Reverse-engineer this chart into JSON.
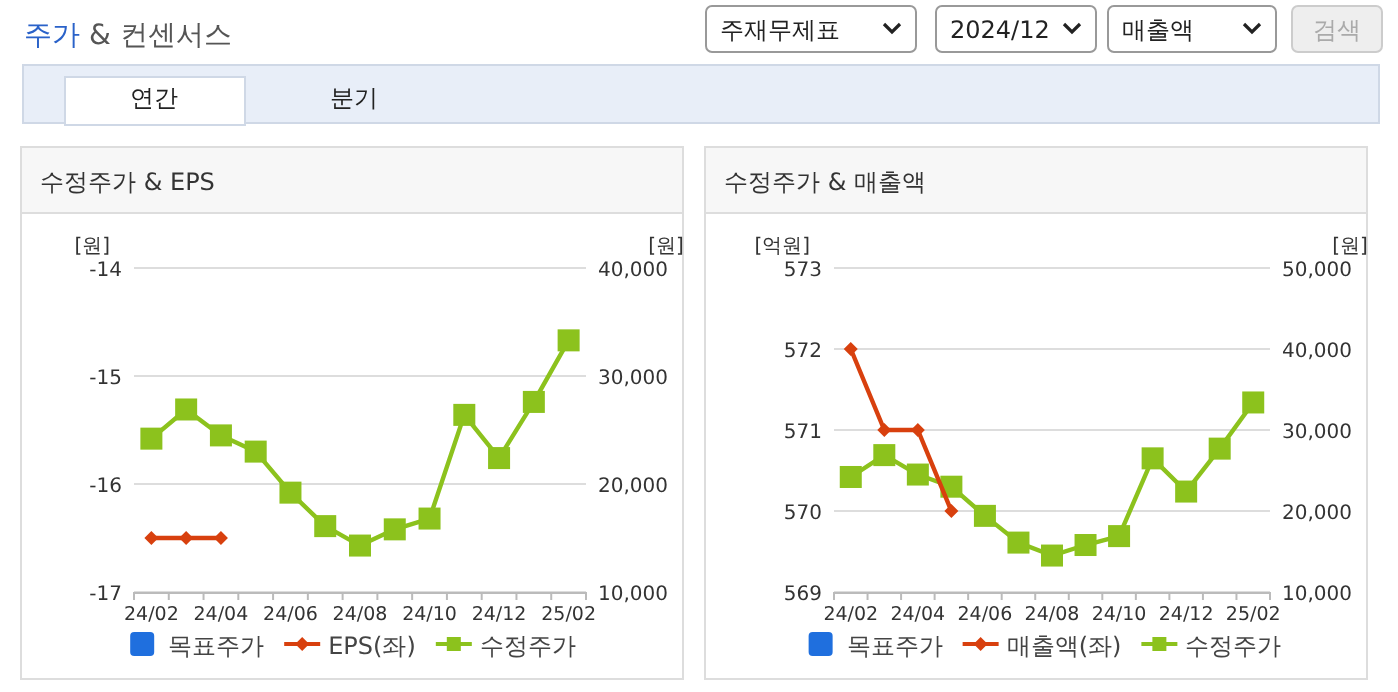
{
  "chart_data": [
    {
      "type": "other",
      "title": "주가 & 컨센서스",
      "annotations": [
        "주재무제표",
        "2024/12",
        "매출액",
        "검색",
        "연간",
        "분기"
      ]
    },
    {
      "type": "line",
      "title": "수정주가 & EPS",
      "ylabel": "[원]",
      "y2label": "[원]",
      "categories": [
        "24/02",
        null,
        "24/04",
        null,
        "24/06",
        null,
        "24/08",
        null,
        "24/10",
        null,
        "24/12",
        null,
        "25/02"
      ],
      "ylim": [
        -17,
        -14
      ],
      "yticks": [
        -17,
        -16,
        -15,
        -14
      ],
      "y2lim": [
        10000,
        40000
      ],
      "y2ticks": [
        {
          "value": 10000,
          "label": "10,000"
        },
        {
          "value": 20000,
          "label": "20,000"
        },
        {
          "value": 30000,
          "label": "30,000"
        },
        {
          "value": 40000,
          "label": "40,000"
        }
      ],
      "grid": "y",
      "legend": "bottom",
      "series": [
        {
          "name": "목표주가",
          "type": "bar",
          "color": "#1f6fde",
          "values": [
            null,
            null,
            null,
            null,
            null,
            null,
            null,
            null,
            null,
            null,
            null,
            null,
            null
          ]
        },
        {
          "name": "EPS(좌)",
          "color": "#d8400e",
          "marker": "diamond",
          "values": [
            -16.5,
            -16.5,
            -16.5,
            null,
            null,
            null,
            null,
            null,
            null,
            null,
            null,
            null,
            null
          ]
        },
        {
          "name": "수정주가",
          "color": "#8cc21d",
          "marker": "square",
          "axis": "y2",
          "values": [
            24200,
            26900,
            24500,
            23000,
            19200,
            16100,
            14300,
            15800,
            16800,
            26400,
            22400,
            27600,
            33300
          ]
        }
      ]
    },
    {
      "type": "line",
      "title": "수정주가 & 매출액",
      "ylabel": "[억원]",
      "y2label": "[원]",
      "categories": [
        "24/02",
        null,
        "24/04",
        null,
        "24/06",
        null,
        "24/08",
        null,
        "24/10",
        null,
        "24/12",
        null,
        "25/02"
      ],
      "ylim": [
        569,
        573
      ],
      "yticks": [
        569,
        570,
        571,
        572,
        573
      ],
      "y2lim": [
        10000,
        50000
      ],
      "y2ticks": [
        {
          "value": 10000,
          "label": "10,000"
        },
        {
          "value": 20000,
          "label": "20,000"
        },
        {
          "value": 30000,
          "label": "30,000"
        },
        {
          "value": 40000,
          "label": "40,000"
        },
        {
          "value": 50000,
          "label": "50,000"
        }
      ],
      "grid": "y",
      "legend": "bottom",
      "series": [
        {
          "name": "목표주가",
          "type": "bar",
          "color": "#1f6fde",
          "values": [
            null,
            null,
            null,
            null,
            null,
            null,
            null,
            null,
            null,
            null,
            null,
            null,
            null
          ]
        },
        {
          "name": "매출액(좌)",
          "color": "#d8400e",
          "marker": "diamond",
          "values": [
            572,
            571,
            571,
            570,
            null,
            null,
            null,
            null,
            null,
            null,
            null,
            null,
            null
          ]
        },
        {
          "name": "수정주가",
          "color": "#8cc21d",
          "marker": "square",
          "axis": "y2",
          "values": [
            24200,
            26900,
            24500,
            23000,
            19400,
            16100,
            14500,
            15800,
            16900,
            26500,
            22400,
            27700,
            33400
          ]
        }
      ]
    }
  ]
}
